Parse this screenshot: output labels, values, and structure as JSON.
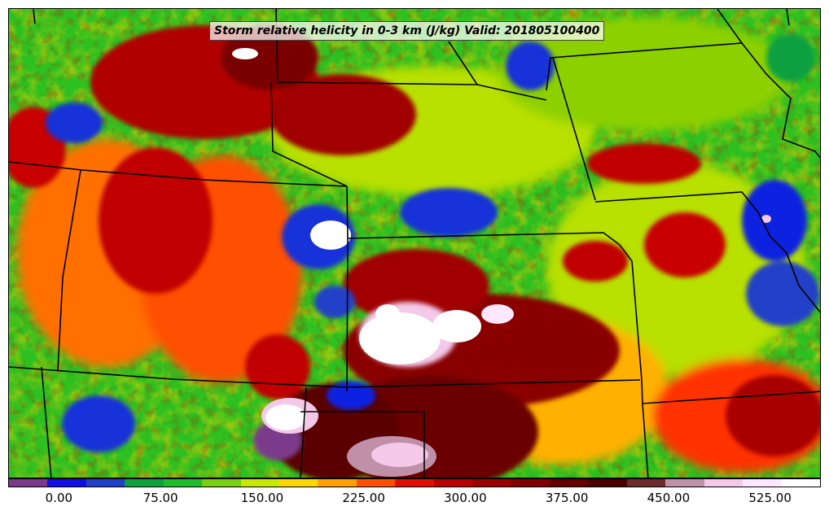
{
  "title": "Storm relative helicity in 0-3 km (J/kg) Valid: 201805100400",
  "map": {
    "field": "storm relative helicity 0-3 km",
    "units": "J/kg",
    "valid": "201805100400",
    "region": "central united states plains",
    "boundaries": "state borders, black lines",
    "background_level": "green"
  },
  "colorbar": {
    "colors": [
      "#7a3a8a",
      "#1010e0",
      "#2040c8",
      "#10a040",
      "#1cbc2a",
      "#78d010",
      "#c8e800",
      "#ffd800",
      "#ffa000",
      "#ff5000",
      "#e01000",
      "#b80000",
      "#9a0000",
      "#800000",
      "#660000",
      "#4a0000",
      "#6a2c2c",
      "#c090a8",
      "#f4c8e8",
      "#ffe8ff",
      "#ffffff"
    ],
    "ticks": [
      "0.00",
      "75.00",
      "150.00",
      "225.00",
      "300.00",
      "375.00",
      "450.00",
      "525.00"
    ],
    "tick_values": [
      0,
      75,
      150,
      225,
      300,
      375,
      450,
      525
    ],
    "range": [
      -37.5,
      562.5
    ]
  }
}
